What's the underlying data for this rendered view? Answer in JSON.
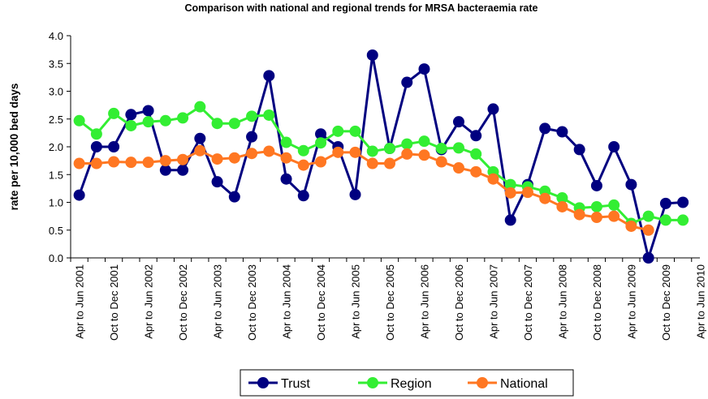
{
  "chart_data": {
    "type": "line",
    "title": "Comparison with national and regional trends for MRSA bacteraemia rate",
    "y_label": "rate per 10,000 bed days",
    "categories": [
      "Apr to Jun 2001",
      null,
      "Oct to Dec 2001",
      null,
      "Apr to Jun 2002",
      null,
      "Oct to Dec 2002",
      null,
      "Apr to Jun 2003",
      null,
      "Oct to Dec 2003",
      null,
      "Apr to Jun 2004",
      null,
      "Oct to Dec 2004",
      null,
      "Apr to Jun 2005",
      null,
      "Oct to Dec 2005",
      null,
      "Apr to Jun 2006",
      null,
      "Oct to Dec 2006",
      null,
      "Apr to Jun 2007",
      null,
      "Oct to Dec 2007",
      null,
      "Apr to Jun 2008",
      null,
      "Oct to Dec 2008",
      null,
      "Apr to Jun 2009",
      null,
      "Oct to Dec 2009",
      null,
      "Apr to Jun 2010"
    ],
    "series": [
      {
        "name": "Trust",
        "color": "#000080",
        "values": [
          1.13,
          2.0,
          2.0,
          2.58,
          2.65,
          1.58,
          1.58,
          2.15,
          1.37,
          1.1,
          2.18,
          3.28,
          1.42,
          1.12,
          2.23,
          2.0,
          1.14,
          3.65,
          1.97,
          3.16,
          3.4,
          1.95,
          2.45,
          2.2,
          2.68,
          0.68,
          1.32,
          2.33,
          2.27,
          1.95,
          1.3,
          2.0,
          1.32,
          0.0,
          0.98,
          1.0,
          null
        ]
      },
      {
        "name": "Region",
        "color": "#33ee33",
        "values": [
          2.47,
          2.23,
          2.6,
          2.38,
          2.45,
          2.47,
          2.52,
          2.72,
          2.42,
          2.42,
          2.55,
          2.57,
          2.08,
          1.93,
          2.07,
          2.28,
          2.28,
          1.92,
          1.97,
          2.05,
          2.1,
          1.97,
          1.98,
          1.87,
          1.55,
          1.32,
          1.28,
          1.2,
          1.08,
          0.9,
          0.92,
          0.95,
          0.62,
          0.75,
          0.68,
          0.68,
          null
        ]
      },
      {
        "name": "National",
        "color": "#ff7722",
        "values": [
          1.7,
          1.7,
          1.73,
          1.72,
          1.72,
          1.75,
          1.77,
          1.93,
          1.78,
          1.8,
          1.88,
          1.92,
          1.8,
          1.67,
          1.73,
          1.9,
          1.9,
          1.7,
          1.7,
          1.87,
          1.85,
          1.73,
          1.62,
          1.55,
          1.42,
          1.17,
          1.18,
          1.07,
          0.92,
          0.78,
          0.73,
          0.75,
          0.57,
          0.5,
          null,
          null,
          null
        ]
      }
    ],
    "ylim": [
      0,
      4
    ],
    "yticks": [
      {
        "value": 0,
        "label": "0.0"
      },
      {
        "value": 0.5,
        "label": "0.5"
      },
      {
        "value": 1,
        "label": "1.0"
      },
      {
        "value": 1.5,
        "label": "1.5"
      },
      {
        "value": 2,
        "label": "2.0"
      },
      {
        "value": 2.5,
        "label": "2.5"
      },
      {
        "value": 3,
        "label": "3.0"
      },
      {
        "value": 3.5,
        "label": "3.5"
      },
      {
        "value": 4,
        "label": "4.0"
      }
    ],
    "legend": "bottom"
  }
}
